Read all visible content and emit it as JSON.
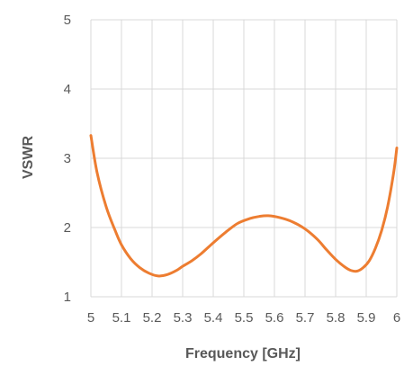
{
  "chart_data": {
    "type": "line",
    "title": "",
    "xlabel": "Frequency [GHz]",
    "ylabel": "VSWR",
    "xlim": [
      5,
      6
    ],
    "ylim": [
      1,
      5
    ],
    "x_ticks": [
      5,
      5.1,
      5.2,
      5.3,
      5.4,
      5.5,
      5.6,
      5.7,
      5.8,
      5.9,
      6
    ],
    "x_tick_labels": [
      "5",
      "5.1",
      "5.2",
      "5.3",
      "5.4",
      "5.5",
      "5.6",
      "5.7",
      "5.8",
      "5.9",
      "6"
    ],
    "y_ticks": [
      1,
      2,
      3,
      4,
      5
    ],
    "y_tick_labels": [
      "1",
      "2",
      "3",
      "4",
      "5"
    ],
    "grid": true,
    "legend": "none",
    "series": [
      {
        "color": "#ED7D31",
        "x": [
          5.0,
          5.02,
          5.05,
          5.08,
          5.1,
          5.13,
          5.16,
          5.19,
          5.22,
          5.25,
          5.28,
          5.3,
          5.33,
          5.36,
          5.4,
          5.44,
          5.48,
          5.52,
          5.55,
          5.58,
          5.62,
          5.66,
          5.7,
          5.74,
          5.77,
          5.8,
          5.83,
          5.85,
          5.87,
          5.89,
          5.91,
          5.93,
          5.95,
          5.97,
          5.99,
          6.0
        ],
        "y": [
          3.33,
          2.8,
          2.3,
          1.95,
          1.75,
          1.55,
          1.42,
          1.34,
          1.3,
          1.32,
          1.38,
          1.44,
          1.52,
          1.62,
          1.78,
          1.93,
          2.06,
          2.13,
          2.16,
          2.17,
          2.14,
          2.08,
          1.98,
          1.83,
          1.68,
          1.54,
          1.43,
          1.38,
          1.37,
          1.42,
          1.52,
          1.7,
          1.95,
          2.3,
          2.8,
          3.15
        ]
      }
    ]
  }
}
